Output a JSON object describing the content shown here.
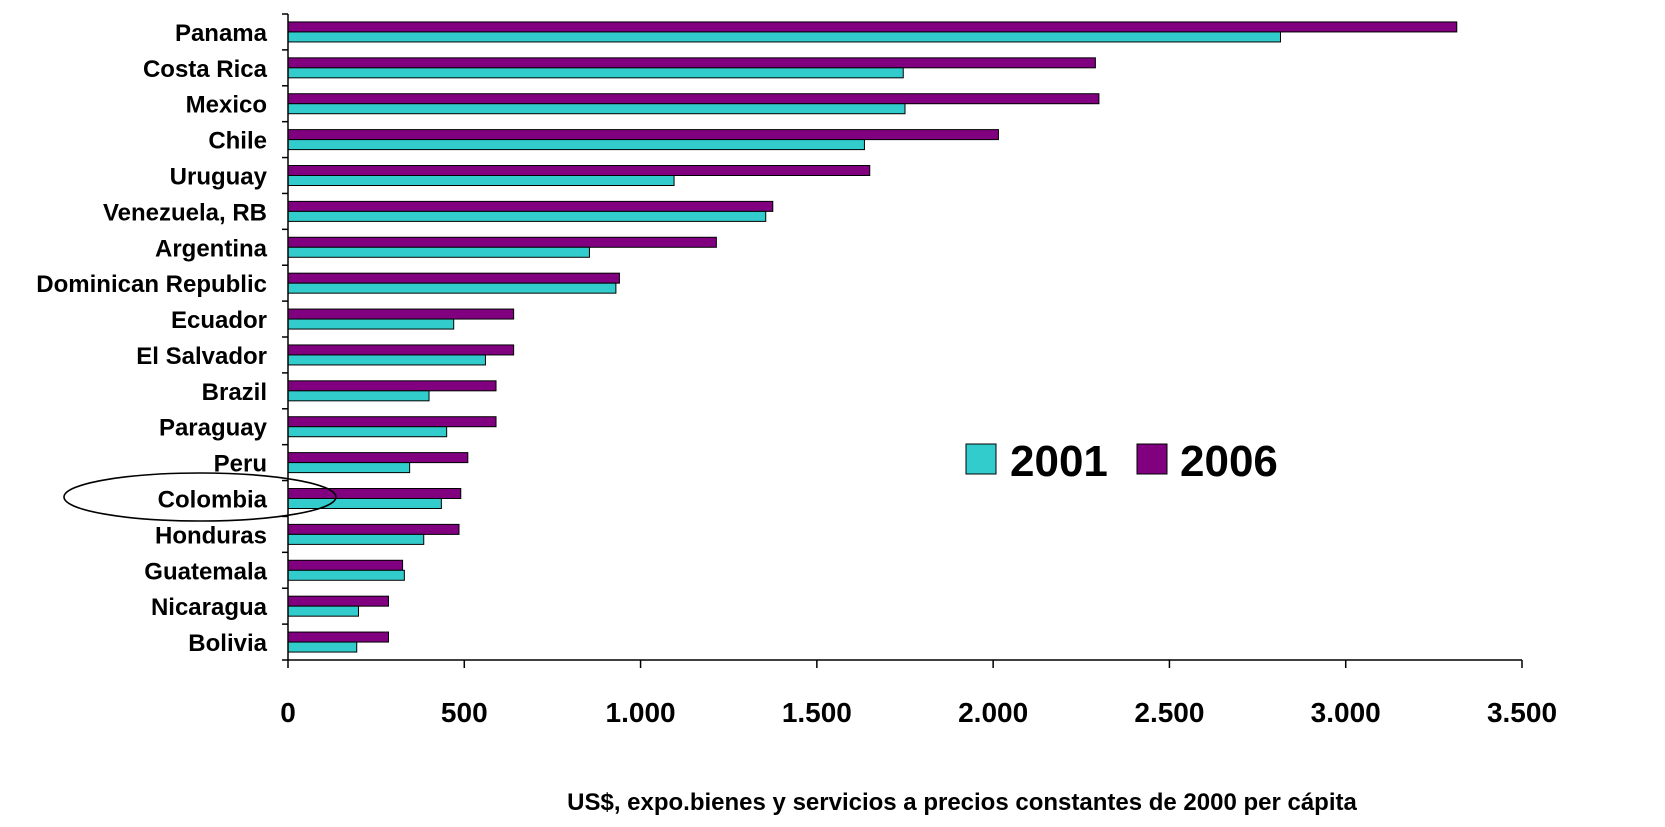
{
  "chart_data": {
    "type": "bar",
    "orientation": "horizontal",
    "categories": [
      "Panama",
      "Costa Rica",
      "Mexico",
      "Chile",
      "Uruguay",
      "Venezuela, RB",
      "Argentina",
      "Dominican Republic",
      "Ecuador",
      "El Salvador",
      "Brazil",
      "Paraguay",
      "Peru",
      "Colombia",
      "Honduras",
      "Guatemala",
      "Nicaragua",
      "Bolivia"
    ],
    "series": [
      {
        "name": "2001",
        "color": "#33CCCC",
        "values": [
          2815,
          1745,
          1750,
          1635,
          1095,
          1355,
          855,
          930,
          470,
          560,
          400,
          450,
          345,
          435,
          385,
          330,
          200,
          195
        ]
      },
      {
        "name": "2006",
        "color": "#800080",
        "values": [
          3315,
          2290,
          2300,
          2015,
          1650,
          1375,
          1215,
          940,
          640,
          640,
          590,
          590,
          510,
          490,
          485,
          325,
          285,
          285
        ]
      }
    ],
    "xlim": [
      0,
      3500
    ],
    "xticks": [
      0,
      500,
      1000,
      1500,
      2000,
      2500,
      3000,
      3500
    ],
    "xtick_labels": [
      "0",
      "500",
      "1.000",
      "1.500",
      "2.000",
      "2.500",
      "3.000",
      "3.500"
    ],
    "xlabel": "US$, expo.bienes y servicios a precios constantes de 2000 per cápita",
    "legend_position": "center-right",
    "highlighted_category": "Colombia",
    "grid": false
  }
}
